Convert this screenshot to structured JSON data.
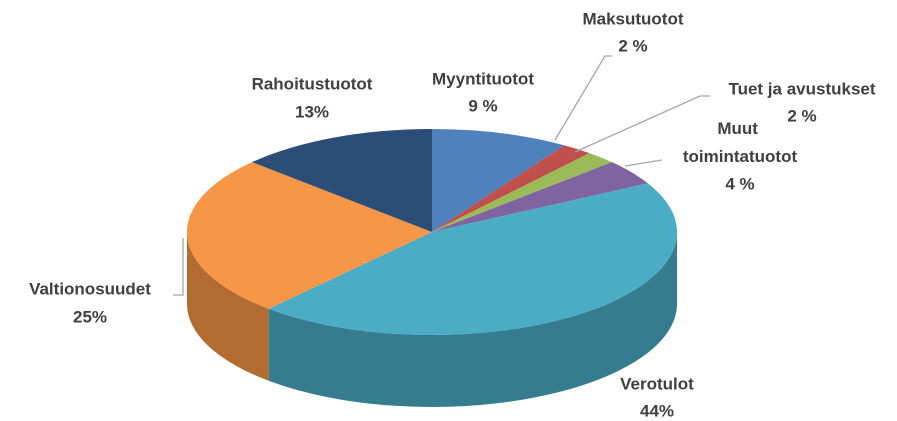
{
  "chart_data": {
    "type": "pie",
    "categories": [
      "Myyntituotot",
      "Maksutuotot",
      "Tuet ja avustukset",
      "Muut toimintatuotot",
      "Verotulot",
      "Valtionosuudet",
      "Rahoitustuotot"
    ],
    "values": [
      9,
      2,
      2,
      4,
      44,
      25,
      13
    ],
    "value_labels": [
      "9 %",
      "2 %",
      "2 %",
      "4 %",
      "44%",
      "25%",
      "13%"
    ],
    "colors": [
      "#4f81bd",
      "#c0504d",
      "#9bbb59",
      "#8064a2",
      "#4bacc6",
      "#f79646",
      "#2c4d75"
    ]
  }
}
